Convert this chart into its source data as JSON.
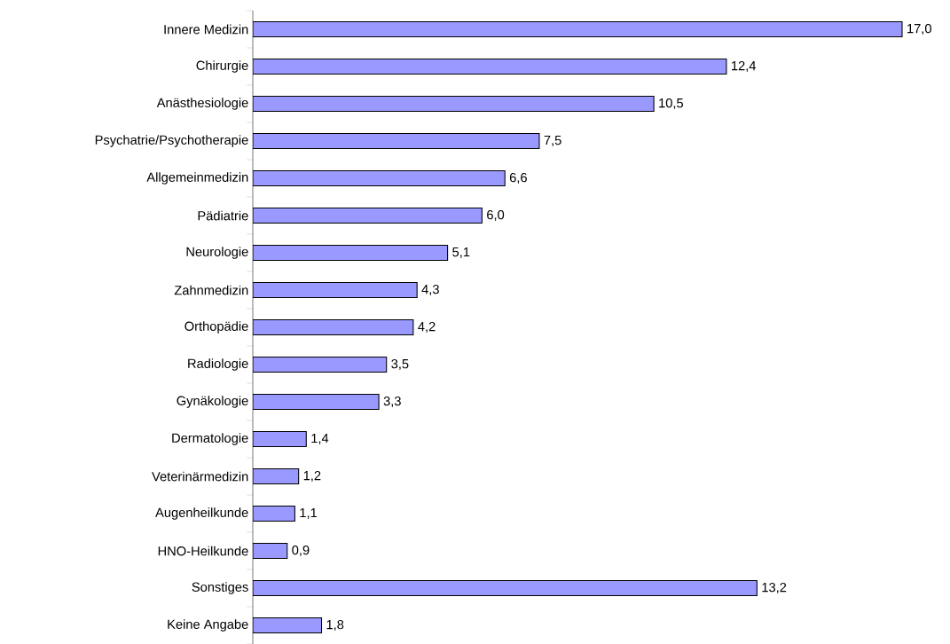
{
  "chart_data": {
    "type": "bar",
    "orientation": "horizontal",
    "color": "#9999ff",
    "categories": [
      "Innere Medizin",
      "Chirurgie",
      "Anästhesiologie",
      "Psychatrie/Psychotherapie",
      "Allgemeinmedizin",
      "Pädiatrie",
      "Neurologie",
      "Zahnmedizin",
      "Orthopädie",
      "Radiologie",
      "Gynäkologie",
      "Dermatologie",
      "Veterinärmedizin",
      "Augenheilkunde",
      "HNO-Heilkunde",
      "Sonstiges",
      "Keine Angabe"
    ],
    "values": [
      17.0,
      12.4,
      10.5,
      7.5,
      6.6,
      6.0,
      5.1,
      4.3,
      4.2,
      3.5,
      3.3,
      1.4,
      1.2,
      1.1,
      0.9,
      13.2,
      1.8
    ],
    "value_labels": [
      "17,0",
      "12,4",
      "10,5",
      "7,5",
      "6,6",
      "6,0",
      "5,1",
      "4,3",
      "4,2",
      "3,5",
      "3,3",
      "1,4",
      "1,2",
      "1,1",
      "0,9",
      "13,2",
      "1,8"
    ]
  }
}
